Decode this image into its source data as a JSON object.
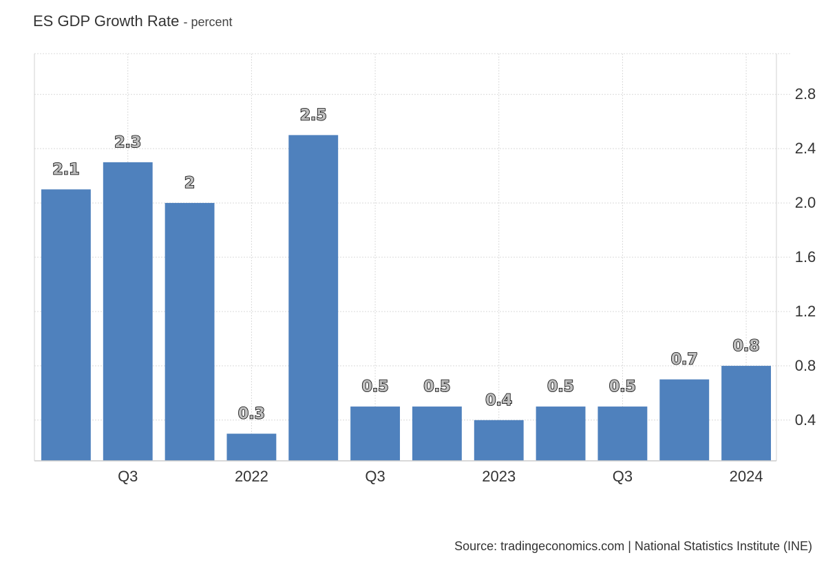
{
  "chart_data": {
    "type": "bar",
    "title": "ES GDP Growth Rate",
    "subtitle": "- percent",
    "categories": [
      "",
      "Q3",
      "",
      "2022",
      "",
      "Q3",
      "",
      "2023",
      "",
      "Q3",
      "",
      "2024"
    ],
    "values": [
      2.1,
      2.3,
      2,
      0.3,
      2.5,
      0.5,
      0.5,
      0.4,
      0.5,
      0.5,
      0.7,
      0.8
    ],
    "value_labels": [
      "2.1",
      "2.3",
      "2",
      "0.3",
      "2.5",
      "0.5",
      "0.5",
      "0.4",
      "0.5",
      "0.5",
      "0.7",
      "0.8"
    ],
    "x_tick_labels": [
      "Q3",
      "2022",
      "Q3",
      "2023",
      "Q3",
      "2024"
    ],
    "y_ticks": [
      0.4,
      0.8,
      1.2,
      1.6,
      2.0,
      2.4,
      2.8
    ],
    "y_tick_labels": [
      "0.4",
      "0.8",
      "1.2",
      "1.6",
      "2.0",
      "2.4",
      "2.8"
    ],
    "ylim": [
      0.1,
      3.1
    ],
    "xlabel": "",
    "ylabel": "",
    "grid": true,
    "legend": "none",
    "y_axis_position": "right",
    "bar_color": "#4f81bd"
  },
  "source": "Source: tradingeconomics.com | National Statistics Institute (INE)"
}
